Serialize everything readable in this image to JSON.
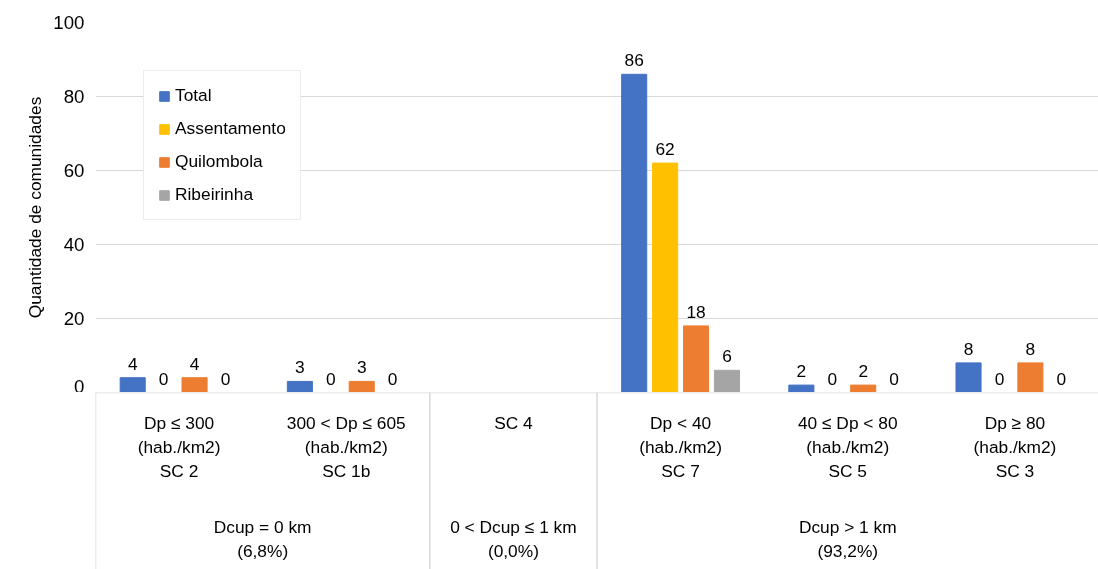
{
  "chart_data": {
    "type": "bar",
    "ylabel": "Quantidade de comunidades",
    "categories": [
      "Dp ≤ 300\n(hab./km2)\nSC 2",
      "300 < Dp ≤ 605\n(hab./km2)\nSC 1b",
      "SC 4",
      "Dp < 40\n(hab./km2)\nSC 7",
      "40 ≤ Dp < 80\n(hab./km2)\nSC 5",
      "Dp ≥ 80\n(hab./km2)\nSC 3"
    ],
    "series": [
      {
        "name": "Total",
        "color": "#4472c4",
        "values": [
          4,
          3,
          null,
          86,
          2,
          8
        ]
      },
      {
        "name": "Assentamento",
        "color": "#ffc000",
        "values": [
          0,
          0,
          null,
          62,
          0,
          0
        ]
      },
      {
        "name": "Quilombola",
        "color": "#ed7d31",
        "values": [
          4,
          3,
          null,
          18,
          2,
          8
        ]
      },
      {
        "name": "Ribeirinha",
        "color": "#a5a5a5",
        "values": [
          0,
          0,
          null,
          6,
          0,
          0
        ]
      }
    ],
    "annotations": [
      "Dcup = 0 km\n(6,8%)",
      "0 < Dcup ≤ 1 km\n(0,0%)",
      "Dcup > 1 km\n(93,2%)"
    ],
    "ylim": [
      0,
      100
    ],
    "yticks": [
      0,
      20,
      40,
      60,
      80,
      100
    ],
    "grid": "y",
    "legend": "top left",
    "data_labels": true
  }
}
